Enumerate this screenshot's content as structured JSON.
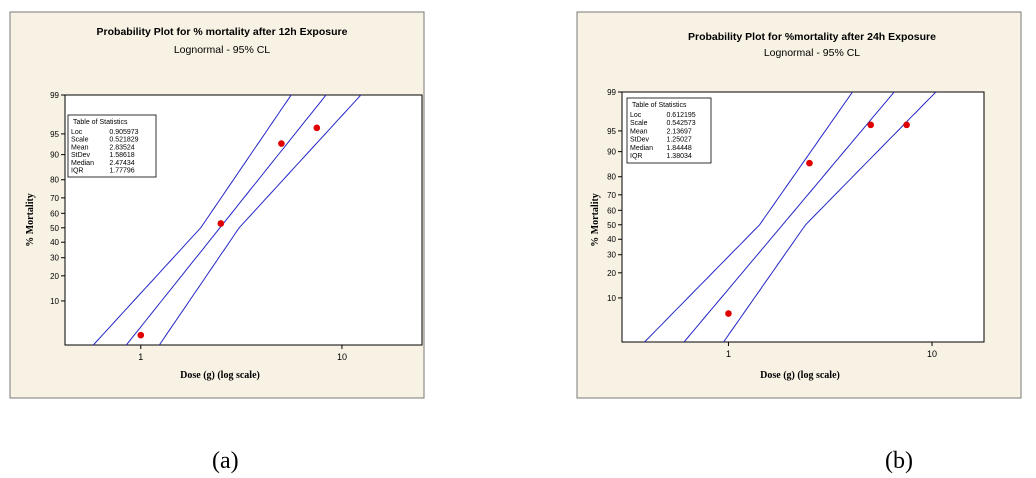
{
  "chart_data": [
    {
      "type": "scatter",
      "title": "Probability Plot for % mortality after 12h Exposure",
      "subtitle": "Lognormal - 95% CL",
      "xlabel": "Dose (g) (log scale)",
      "ylabel": "% Mortality",
      "x_scale": "log",
      "y_scale": "lognormal probability",
      "x_ticks": [
        "1",
        "10"
      ],
      "y_ticks": [
        "10",
        "20",
        "30",
        "40",
        "50",
        "60",
        "70",
        "80",
        "90",
        "95",
        "99"
      ],
      "xlim": [
        0.42,
        25
      ],
      "ylim": [
        2,
        99
      ],
      "points": [
        {
          "x": 1,
          "y": 3
        },
        {
          "x": 2.5,
          "y": 53
        },
        {
          "x": 5,
          "y": 93
        },
        {
          "x": 7.5,
          "y": 96
        }
      ],
      "fit": {
        "loc": 0.905973,
        "scale": 0.521829
      },
      "stats_table": {
        "title": "Table of Statistics",
        "rows": [
          [
            "Loc",
            "0.905973"
          ],
          [
            "Scale",
            "0.521829"
          ],
          [
            "Mean",
            "2.83524"
          ],
          [
            "StDev",
            "1.58618"
          ],
          [
            "Median",
            "2.47434"
          ],
          [
            "IQR",
            "1.77796"
          ]
        ]
      },
      "panel_label": "(a)",
      "colors": {
        "fit": "#2626c8",
        "points": "#e00000",
        "frame_bg": "#f7f2e4"
      }
    },
    {
      "type": "scatter",
      "title": "Probability Plot for %mortality after 24h Exposure",
      "subtitle": "Lognormal - 95% CL",
      "xlabel": "Dose (g) (log scale)",
      "ylabel": "% Mortality",
      "x_scale": "log",
      "y_scale": "lognormal probability",
      "x_ticks": [
        "1",
        "10"
      ],
      "y_ticks": [
        "10",
        "20",
        "30",
        "40",
        "50",
        "60",
        "70",
        "80",
        "90",
        "95",
        "99"
      ],
      "xlim": [
        0.3,
        18
      ],
      "ylim": [
        2,
        99
      ],
      "points": [
        {
          "x": 1,
          "y": 6
        },
        {
          "x": 2.5,
          "y": 86
        },
        {
          "x": 5,
          "y": 96
        },
        {
          "x": 7.5,
          "y": 96
        }
      ],
      "fit": {
        "loc": 0.612195,
        "scale": 0.542573
      },
      "stats_table": {
        "title": "Table of Statistics",
        "rows": [
          [
            "Loc",
            "0.612195"
          ],
          [
            "Scale",
            "0.542573"
          ],
          [
            "Mean",
            "2.13697"
          ],
          [
            "StDev",
            "1.25027"
          ],
          [
            "Median",
            "1.84448"
          ],
          [
            "IQR",
            "1.38034"
          ]
        ]
      },
      "panel_label": "(b)",
      "colors": {
        "fit": "#2626c8",
        "points": "#e00000",
        "frame_bg": "#f7f2e4"
      }
    }
  ]
}
